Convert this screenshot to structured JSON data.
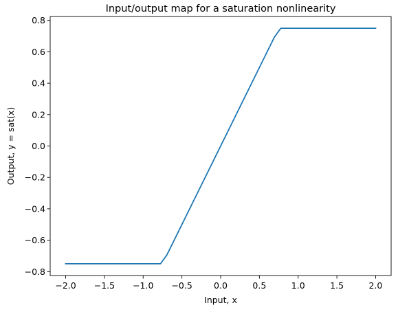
{
  "chart_data": {
    "type": "line",
    "title": "Input/output map for a saturation nonlinearity",
    "xlabel": "Input, x",
    "ylabel": "Output, y = sat(x)",
    "xlim": [
      -2.2,
      2.2
    ],
    "ylim": [
      -0.825,
      0.825
    ],
    "xticks": [
      -2.0,
      -1.5,
      -1.0,
      -0.5,
      0.0,
      0.5,
      1.0,
      1.5,
      2.0
    ],
    "xtick_labels": [
      "−2.0",
      "−1.5",
      "−1.0",
      "−0.5",
      "0.0",
      "0.5",
      "1.0",
      "1.5",
      "2.0"
    ],
    "yticks": [
      -0.8,
      -0.6,
      -0.4,
      -0.2,
      0.0,
      0.2,
      0.4,
      0.6,
      0.8
    ],
    "ytick_labels": [
      "−0.8",
      "−0.6",
      "−0.4",
      "−0.2",
      "0.0",
      "0.2",
      "0.4",
      "0.6",
      "0.8"
    ],
    "grid": false,
    "legend": "none",
    "series": [
      {
        "color": "#1f77b4",
        "x": [
          -2.0,
          -0.776,
          -0.694,
          0.694,
          0.776,
          2.0
        ],
        "y": [
          -0.75,
          -0.75,
          -0.694,
          0.694,
          0.75,
          0.75
        ]
      }
    ]
  }
}
